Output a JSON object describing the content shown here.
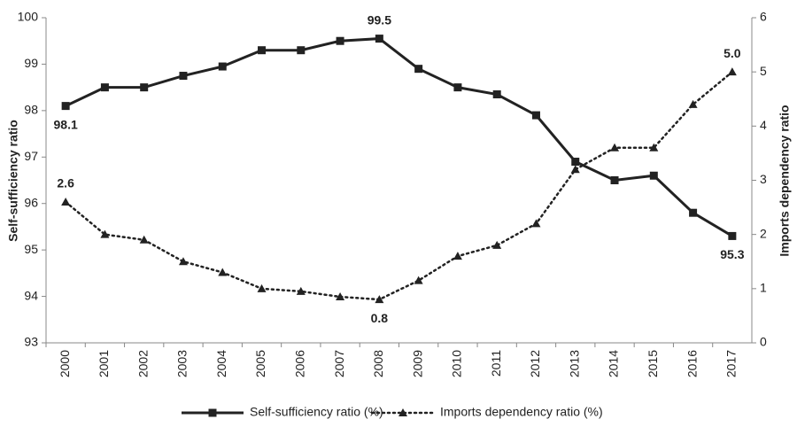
{
  "chart_data": {
    "type": "line",
    "categories": [
      "2000",
      "2001",
      "2002",
      "2003",
      "2004",
      "2005",
      "2006",
      "2007",
      "2008",
      "2009",
      "2010",
      "2011",
      "2012",
      "2013",
      "2014",
      "2015",
      "2016",
      "2017"
    ],
    "y_label": "Self-sufficiency ratio",
    "y2_label": "Imports dependency ratio",
    "ylim": [
      93,
      100
    ],
    "yticks": [
      93,
      94,
      95,
      96,
      97,
      98,
      99,
      100
    ],
    "y2lim": [
      0,
      6
    ],
    "y2ticks": [
      0,
      1,
      2,
      3,
      4,
      5,
      6
    ],
    "grid": false,
    "legend": "bottom",
    "series": [
      {
        "name": "Self-sufficiency ratio (%)",
        "color": "#222222",
        "marker": "square",
        "dash": "solid",
        "values": [
          98.1,
          98.5,
          98.5,
          98.75,
          98.95,
          99.3,
          99.3,
          99.5,
          99.55,
          98.9,
          98.5,
          98.35,
          97.9,
          96.9,
          96.5,
          96.6,
          95.8,
          95.3
        ],
        "value_labels": [
          "98.1",
          null,
          null,
          null,
          null,
          null,
          null,
          null,
          "99.5",
          null,
          null,
          null,
          null,
          null,
          null,
          null,
          null,
          "95.3"
        ]
      },
      {
        "name": "Imports dependency ratio (%)",
        "color": "#222222",
        "marker": "triangle",
        "dash": "dotted",
        "axis": "y2",
        "values": [
          2.6,
          2.0,
          1.9,
          1.5,
          1.3,
          1.0,
          0.95,
          0.85,
          0.8,
          1.15,
          1.6,
          1.8,
          2.2,
          3.2,
          3.6,
          3.6,
          4.4,
          5.0
        ],
        "value_labels": [
          "2.6",
          null,
          null,
          null,
          null,
          null,
          null,
          null,
          "0.8",
          null,
          null,
          null,
          null,
          null,
          null,
          null,
          null,
          "5.0"
        ]
      }
    ]
  }
}
